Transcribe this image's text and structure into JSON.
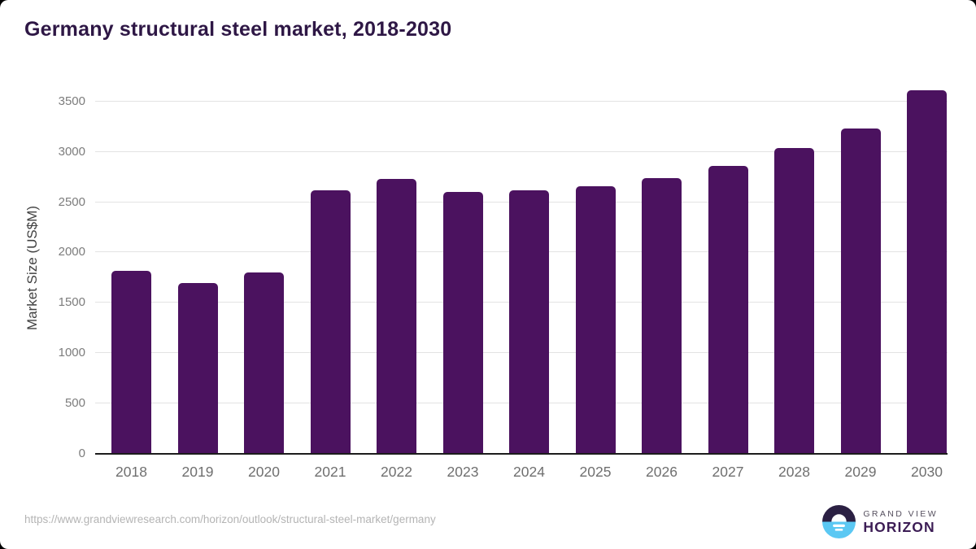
{
  "page": {
    "title": "Germany structural steel market, 2018-2030",
    "source_url": "https://www.grandviewresearch.com/horizon/outlook/structural-steel-market/germany",
    "brand": {
      "top": "GRAND VIEW",
      "bottom": "HORIZON"
    }
  },
  "chart_data": {
    "type": "bar",
    "title": "Germany structural steel market, 2018-2030",
    "categories": [
      "2018",
      "2019",
      "2020",
      "2021",
      "2022",
      "2023",
      "2024",
      "2025",
      "2026",
      "2027",
      "2028",
      "2029",
      "2030"
    ],
    "values": [
      1820,
      1700,
      1800,
      2620,
      2730,
      2600,
      2615,
      2660,
      2740,
      2860,
      3040,
      3230,
      3610
    ],
    "series_name": "Market Size",
    "xlabel": "",
    "ylabel": "Market Size (US$M)",
    "ylim": [
      0,
      3700
    ],
    "yticks": [
      0,
      500,
      1000,
      1500,
      2000,
      2500,
      3000,
      3500
    ],
    "grid": "horizontal",
    "legend_position": "none",
    "bar_color": "#4b125f"
  },
  "colors": {
    "title": "#2e1745",
    "bar": "#4b125f",
    "axis_line": "#1c1c1c",
    "gridline": "#e3e3e3",
    "tick_label": "#7c7c7c",
    "logo_navy": "#2b2043",
    "logo_blue": "#5bc8f3",
    "logo_wordmark": "#3c1d55"
  }
}
